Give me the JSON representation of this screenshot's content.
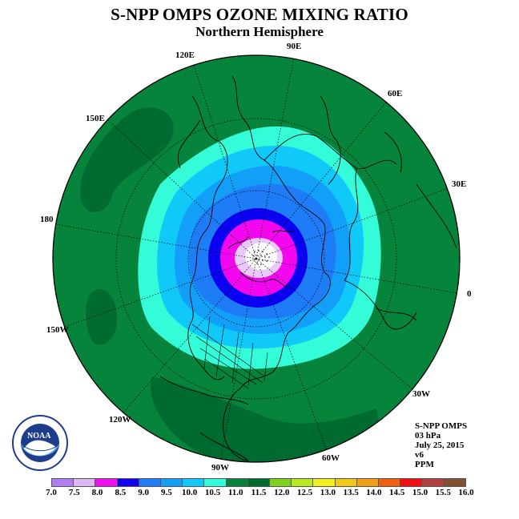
{
  "header": {
    "title": "S-NPP OMPS OZONE MIXING RATIO",
    "subtitle": "Northern Hemisphere"
  },
  "map": {
    "projection": "north polar stereographic",
    "lon_labels": [
      "90E",
      "60E",
      "30E",
      "0",
      "30W",
      "60W",
      "90W",
      "120W",
      "150W",
      "180",
      "150E",
      "120E"
    ],
    "ring_colors": [
      "#07843c",
      "#34fcd8",
      "#10c9f8",
      "#119ff8",
      "#1d7cf6",
      "#0b00f0",
      "#f207ef",
      "#e8c9fa",
      "#ffffff"
    ]
  },
  "info": {
    "instrument": "S-NPP OMPS",
    "level": "03 hPa",
    "date": "July 25, 2015",
    "version": "v6",
    "units": "PPM"
  },
  "colorbar": {
    "colors": [
      "#b07ef0",
      "#dcb9f5",
      "#f011ee",
      "#1100f0",
      "#1d7cf6",
      "#119ff8",
      "#10c9f8",
      "#34fcd8",
      "#07843c",
      "#006b30",
      "#80d020",
      "#b8e820",
      "#f0f020",
      "#f0c818",
      "#f0a018",
      "#f06010",
      "#f01010",
      "#b04040",
      "#805030"
    ],
    "ticks": [
      "7.0",
      "7.5",
      "8.0",
      "8.5",
      "9.0",
      "9.5",
      "10.0",
      "10.5",
      "11.0",
      "11.5",
      "12.0",
      "12.5",
      "13.0",
      "13.5",
      "14.0",
      "14.5",
      "15.0",
      "15.5",
      "16.0"
    ]
  },
  "logo": {
    "text": "NOAA",
    "ring_text": "NATIONAL OCEANIC AND ATMOSPHERIC ADMINISTRATION · U.S. DEPARTMENT OF COMMERCE"
  }
}
